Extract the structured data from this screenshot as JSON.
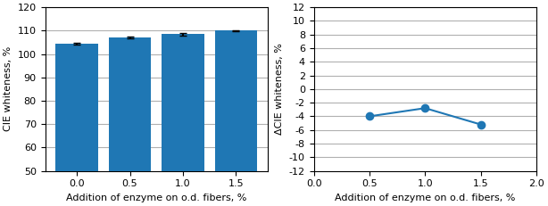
{
  "chart_data": [
    {
      "type": "bar",
      "categories": [
        "0.0",
        "0.5",
        "1.0",
        "1.5"
      ],
      "values": [
        104.5,
        107.0,
        108.5,
        110.0
      ],
      "errors": [
        0.3,
        0.3,
        0.5,
        0.3
      ],
      "ylim": [
        50,
        120
      ],
      "yticks": [
        50,
        60,
        70,
        80,
        90,
        100,
        110,
        120
      ],
      "ylabel": "CIE whiteness, %",
      "xlabel": "Addition of enzyme on o.d. fibers, %",
      "grid": true
    },
    {
      "type": "line",
      "x": [
        0.5,
        1.0,
        1.5
      ],
      "values": [
        -4.0,
        -2.8,
        -5.2
      ],
      "xlim": [
        0.0,
        2.0
      ],
      "xticks": [
        0.0,
        0.5,
        1.0,
        1.5,
        2.0
      ],
      "ylim": [
        -12,
        12
      ],
      "yticks": [
        -12,
        -10,
        -8,
        -6,
        -4,
        -2,
        0,
        2,
        4,
        6,
        8,
        10,
        12
      ],
      "ylabel": "ΔCIE whiteness, %",
      "xlabel": "Addition of enzyme on o.d. fibers, %",
      "marker": "o",
      "grid": true
    }
  ]
}
